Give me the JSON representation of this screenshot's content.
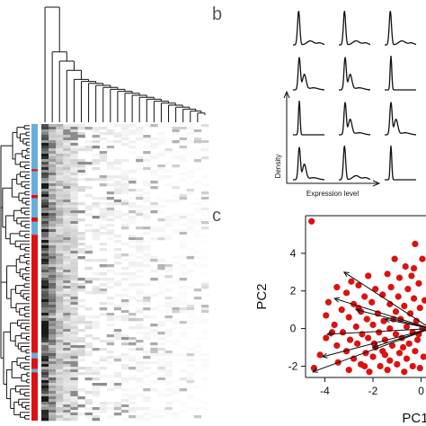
{
  "panels": {
    "b_letter": "b",
    "c_letter": "c"
  },
  "colors": {
    "red": "#dd1111",
    "blue": "#66b0e0",
    "dark": "#222222"
  },
  "panel_b": {
    "xlabel": "Expression level",
    "ylabel": "Density"
  },
  "chart_data": [
    {
      "type": "heatmap",
      "title": "",
      "row_groups": [
        {
          "label": "blue",
          "rows": 42
        },
        {
          "label": "red",
          "rows": 2
        },
        {
          "label": "blue",
          "rows": 22
        },
        {
          "label": "red",
          "rows": 3
        },
        {
          "label": "blue",
          "rows": 18
        },
        {
          "label": "red",
          "rows": 4
        },
        {
          "label": "blue",
          "rows": 12
        },
        {
          "label": "red",
          "rows": 110
        },
        {
          "label": "blue",
          "rows": 5
        },
        {
          "label": "red",
          "rows": 10
        },
        {
          "label": "blue",
          "rows": 3
        },
        {
          "label": "red",
          "rows": 45
        }
      ],
      "column_intensity": [
        0.95,
        0.55,
        0.3,
        0.22,
        0.18,
        0.15,
        0.13,
        0.12,
        0.1,
        0.09,
        0.08,
        0.07,
        0.06,
        0.06,
        0.05,
        0.05,
        0.04,
        0.04,
        0.03,
        0.03,
        0.03,
        0.02,
        0.02
      ]
    },
    {
      "type": "line",
      "title": "",
      "grid_rows": 4,
      "grid_cols": 3,
      "xlabel": "Expression level",
      "ylabel": "Density",
      "curves": [
        {
          "row": 0,
          "col": 0,
          "shape": "peak_tail"
        },
        {
          "row": 0,
          "col": 1,
          "shape": "peak_tail"
        },
        {
          "row": 0,
          "col": 2,
          "shape": "peak_tail"
        },
        {
          "row": 1,
          "col": 0,
          "shape": "bimodal"
        },
        {
          "row": 1,
          "col": 1,
          "shape": "bimodal"
        },
        {
          "row": 1,
          "col": 2,
          "shape": "narrow"
        },
        {
          "row": 2,
          "col": 0,
          "shape": "narrow"
        },
        {
          "row": 2,
          "col": 1,
          "shape": "bimodal"
        },
        {
          "row": 2,
          "col": 2,
          "shape": "bimodal"
        },
        {
          "row": 3,
          "col": 0,
          "shape": "bimodal"
        },
        {
          "row": 3,
          "col": 1,
          "shape": "peak_tail"
        },
        {
          "row": 3,
          "col": 2,
          "shape": "narrow"
        }
      ]
    },
    {
      "type": "scatter",
      "title": "",
      "xlabel": "PC1",
      "ylabel": "PC2",
      "xlim": [
        -4.8,
        0.5
      ],
      "ylim": [
        -2.6,
        6.0
      ],
      "xticks": [
        -4,
        -2,
        0
      ],
      "yticks": [
        -2,
        0,
        2,
        4
      ],
      "point_color": "#dd1111",
      "points": [
        [
          -4.55,
          5.7
        ],
        [
          -0.25,
          4.5
        ],
        [
          -1.1,
          3.7
        ],
        [
          0.05,
          3.7
        ],
        [
          -0.65,
          3.3
        ],
        [
          0.25,
          3.0
        ],
        [
          -0.3,
          3.2
        ],
        [
          -2.2,
          2.8
        ],
        [
          -1.4,
          2.9
        ],
        [
          -0.9,
          2.7
        ],
        [
          -0.1,
          2.4
        ],
        [
          -3.5,
          2.2
        ],
        [
          -2.6,
          2.3
        ],
        [
          -1.9,
          2.1
        ],
        [
          -1.25,
          2.2
        ],
        [
          -0.55,
          2.1
        ],
        [
          0.2,
          2.1
        ],
        [
          -3.1,
          1.9
        ],
        [
          -2.35,
          1.7
        ],
        [
          -1.6,
          1.8
        ],
        [
          -0.95,
          1.7
        ],
        [
          -0.3,
          1.6
        ],
        [
          0.15,
          1.5
        ],
        [
          -3.85,
          1.4
        ],
        [
          -2.8,
          1.3
        ],
        [
          -2.05,
          1.4
        ],
        [
          -1.3,
          1.3
        ],
        [
          -0.7,
          1.2
        ],
        [
          -0.05,
          1.1
        ],
        [
          -3.3,
          1.0
        ],
        [
          -2.5,
          0.9
        ],
        [
          -1.8,
          0.8
        ],
        [
          -1.05,
          0.9
        ],
        [
          -0.45,
          0.8
        ],
        [
          0.25,
          0.7
        ],
        [
          -3.95,
          0.7
        ],
        [
          -3.0,
          0.6
        ],
        [
          -2.25,
          0.5
        ],
        [
          -1.55,
          0.4
        ],
        [
          -0.85,
          0.5
        ],
        [
          -0.2,
          0.4
        ],
        [
          0.35,
          0.3
        ],
        [
          -3.6,
          0.2
        ],
        [
          -2.7,
          0.1
        ],
        [
          -2.0,
          0.2
        ],
        [
          -1.3,
          0.0
        ],
        [
          -0.6,
          0.1
        ],
        [
          0.05,
          0.0
        ],
        [
          -3.25,
          -0.2
        ],
        [
          -2.45,
          -0.3
        ],
        [
          -1.75,
          -0.2
        ],
        [
          -1.05,
          -0.3
        ],
        [
          -0.35,
          -0.2
        ],
        [
          0.3,
          -0.3
        ],
        [
          -3.95,
          -0.5
        ],
        [
          -2.95,
          -0.6
        ],
        [
          -2.2,
          -0.5
        ],
        [
          -1.5,
          -0.6
        ],
        [
          -0.8,
          -0.5
        ],
        [
          -0.15,
          -0.6
        ],
        [
          -3.5,
          -0.9
        ],
        [
          -2.65,
          -0.8
        ],
        [
          -1.9,
          -1.0
        ],
        [
          -1.2,
          -0.9
        ],
        [
          -0.5,
          -0.8
        ],
        [
          0.2,
          -0.9
        ],
        [
          -3.1,
          -1.2
        ],
        [
          -2.3,
          -1.3
        ],
        [
          -1.6,
          -1.2
        ],
        [
          -0.9,
          -1.3
        ],
        [
          -0.25,
          -1.2
        ],
        [
          -4.2,
          -1.4
        ],
        [
          -2.8,
          -1.6
        ],
        [
          -2.0,
          -1.5
        ],
        [
          -1.3,
          -1.7
        ],
        [
          -0.6,
          -1.6
        ],
        [
          0.1,
          -1.5
        ],
        [
          -3.45,
          -1.8
        ],
        [
          -2.5,
          -1.9
        ],
        [
          -1.7,
          -2.0
        ],
        [
          -1.0,
          -1.9
        ],
        [
          -0.35,
          -2.0
        ],
        [
          -4.45,
          -2.1
        ],
        [
          -3.0,
          -2.2
        ],
        [
          -2.15,
          -2.3
        ],
        [
          -1.4,
          -2.2
        ],
        [
          -0.7,
          -2.3
        ],
        [
          -0.05,
          -2.1
        ],
        [
          0.35,
          -1.9
        ],
        [
          -2.6,
          1.1
        ],
        [
          -1.95,
          -0.8
        ],
        [
          -0.4,
          2.8
        ],
        [
          -1.5,
          -1.4
        ],
        [
          -0.75,
          -1.0
        ],
        [
          0.4,
          1.2
        ],
        [
          -2.9,
          2.5
        ],
        [
          -3.7,
          -0.2
        ],
        [
          -1.15,
          0.5
        ],
        [
          -0.1,
          -0.3
        ],
        [
          -2.35,
          -2.0
        ]
      ],
      "arrows": [
        {
          "x": -4.5,
          "y": -2.3
        },
        {
          "x": -4.1,
          "y": -1.5
        },
        {
          "x": -3.6,
          "y": 1.6
        },
        {
          "x": -3.2,
          "y": 3.0
        },
        {
          "x": -2.7,
          "y": 1.0
        },
        {
          "x": -2.0,
          "y": -1.0
        },
        {
          "x": -1.5,
          "y": 0.5
        },
        {
          "x": -3.9,
          "y": -0.3
        }
      ],
      "arrow_origin": [
        0.4,
        0.0
      ]
    }
  ]
}
